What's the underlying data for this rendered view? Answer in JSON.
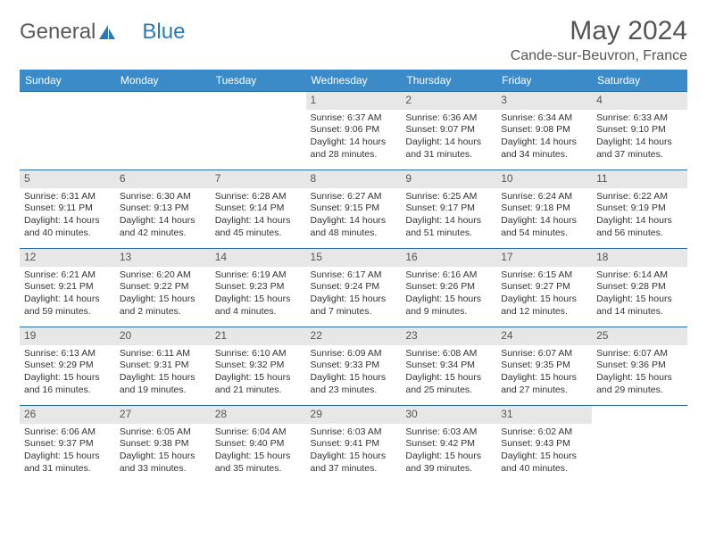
{
  "logo": {
    "text1": "General",
    "text2": "Blue"
  },
  "title": "May 2024",
  "location": "Cande-sur-Beuvron, France",
  "colors": {
    "header_bg": "#3b8bc8",
    "header_fg": "#ffffff",
    "border": "#2a6aa0",
    "daynum_bg": "#e7e7e7",
    "logo_gray": "#5a5a5a",
    "logo_blue": "#2a7ab9"
  },
  "weekdays": [
    "Sunday",
    "Monday",
    "Tuesday",
    "Wednesday",
    "Thursday",
    "Friday",
    "Saturday"
  ],
  "weeks": [
    [
      null,
      null,
      null,
      {
        "n": "1",
        "sr": "6:37 AM",
        "ss": "9:06 PM",
        "dl": "14 hours and 28 minutes."
      },
      {
        "n": "2",
        "sr": "6:36 AM",
        "ss": "9:07 PM",
        "dl": "14 hours and 31 minutes."
      },
      {
        "n": "3",
        "sr": "6:34 AM",
        "ss": "9:08 PM",
        "dl": "14 hours and 34 minutes."
      },
      {
        "n": "4",
        "sr": "6:33 AM",
        "ss": "9:10 PM",
        "dl": "14 hours and 37 minutes."
      }
    ],
    [
      {
        "n": "5",
        "sr": "6:31 AM",
        "ss": "9:11 PM",
        "dl": "14 hours and 40 minutes."
      },
      {
        "n": "6",
        "sr": "6:30 AM",
        "ss": "9:13 PM",
        "dl": "14 hours and 42 minutes."
      },
      {
        "n": "7",
        "sr": "6:28 AM",
        "ss": "9:14 PM",
        "dl": "14 hours and 45 minutes."
      },
      {
        "n": "8",
        "sr": "6:27 AM",
        "ss": "9:15 PM",
        "dl": "14 hours and 48 minutes."
      },
      {
        "n": "9",
        "sr": "6:25 AM",
        "ss": "9:17 PM",
        "dl": "14 hours and 51 minutes."
      },
      {
        "n": "10",
        "sr": "6:24 AM",
        "ss": "9:18 PM",
        "dl": "14 hours and 54 minutes."
      },
      {
        "n": "11",
        "sr": "6:22 AM",
        "ss": "9:19 PM",
        "dl": "14 hours and 56 minutes."
      }
    ],
    [
      {
        "n": "12",
        "sr": "6:21 AM",
        "ss": "9:21 PM",
        "dl": "14 hours and 59 minutes."
      },
      {
        "n": "13",
        "sr": "6:20 AM",
        "ss": "9:22 PM",
        "dl": "15 hours and 2 minutes."
      },
      {
        "n": "14",
        "sr": "6:19 AM",
        "ss": "9:23 PM",
        "dl": "15 hours and 4 minutes."
      },
      {
        "n": "15",
        "sr": "6:17 AM",
        "ss": "9:24 PM",
        "dl": "15 hours and 7 minutes."
      },
      {
        "n": "16",
        "sr": "6:16 AM",
        "ss": "9:26 PM",
        "dl": "15 hours and 9 minutes."
      },
      {
        "n": "17",
        "sr": "6:15 AM",
        "ss": "9:27 PM",
        "dl": "15 hours and 12 minutes."
      },
      {
        "n": "18",
        "sr": "6:14 AM",
        "ss": "9:28 PM",
        "dl": "15 hours and 14 minutes."
      }
    ],
    [
      {
        "n": "19",
        "sr": "6:13 AM",
        "ss": "9:29 PM",
        "dl": "15 hours and 16 minutes."
      },
      {
        "n": "20",
        "sr": "6:11 AM",
        "ss": "9:31 PM",
        "dl": "15 hours and 19 minutes."
      },
      {
        "n": "21",
        "sr": "6:10 AM",
        "ss": "9:32 PM",
        "dl": "15 hours and 21 minutes."
      },
      {
        "n": "22",
        "sr": "6:09 AM",
        "ss": "9:33 PM",
        "dl": "15 hours and 23 minutes."
      },
      {
        "n": "23",
        "sr": "6:08 AM",
        "ss": "9:34 PM",
        "dl": "15 hours and 25 minutes."
      },
      {
        "n": "24",
        "sr": "6:07 AM",
        "ss": "9:35 PM",
        "dl": "15 hours and 27 minutes."
      },
      {
        "n": "25",
        "sr": "6:07 AM",
        "ss": "9:36 PM",
        "dl": "15 hours and 29 minutes."
      }
    ],
    [
      {
        "n": "26",
        "sr": "6:06 AM",
        "ss": "9:37 PM",
        "dl": "15 hours and 31 minutes."
      },
      {
        "n": "27",
        "sr": "6:05 AM",
        "ss": "9:38 PM",
        "dl": "15 hours and 33 minutes."
      },
      {
        "n": "28",
        "sr": "6:04 AM",
        "ss": "9:40 PM",
        "dl": "15 hours and 35 minutes."
      },
      {
        "n": "29",
        "sr": "6:03 AM",
        "ss": "9:41 PM",
        "dl": "15 hours and 37 minutes."
      },
      {
        "n": "30",
        "sr": "6:03 AM",
        "ss": "9:42 PM",
        "dl": "15 hours and 39 minutes."
      },
      {
        "n": "31",
        "sr": "6:02 AM",
        "ss": "9:43 PM",
        "dl": "15 hours and 40 minutes."
      },
      null
    ]
  ],
  "labels": {
    "sunrise": "Sunrise: ",
    "sunset": "Sunset: ",
    "daylight": "Daylight: "
  }
}
